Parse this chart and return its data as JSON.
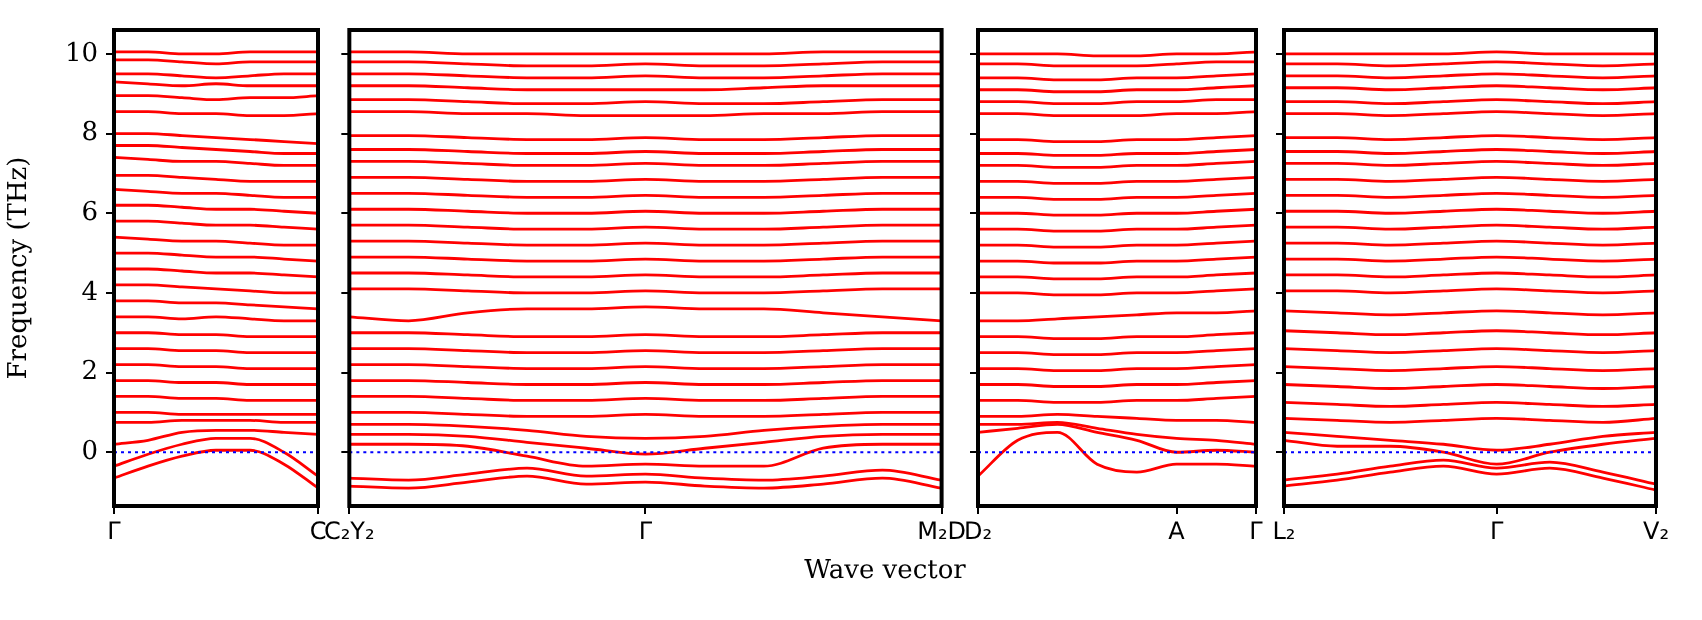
{
  "chart_data": [
    {
      "type": "line",
      "ylabel": "Frequency (THz)",
      "categories": [
        "Γ",
        null,
        null,
        null,
        null,
        null,
        "C"
      ],
      "ylim": [
        -1.35,
        10.6
      ],
      "yticks": [
        0,
        2,
        4,
        6,
        8,
        10
      ],
      "ref_lines": [
        {
          "axis": "y",
          "value": 0,
          "color": "#0000ff",
          "line_style": "dotted"
        }
      ],
      "series": [
        {
          "color": "#ff0000",
          "values": [
            10.05,
            10.05,
            10.0,
            10.0,
            10.05,
            10.05,
            10.05
          ]
        },
        {
          "color": "#ff0000",
          "values": [
            9.85,
            9.85,
            9.8,
            9.75,
            9.8,
            9.8,
            9.8
          ]
        },
        {
          "color": "#ff0000",
          "values": [
            9.5,
            9.5,
            9.45,
            9.4,
            9.45,
            9.5,
            9.5
          ]
        },
        {
          "color": "#ff0000",
          "values": [
            9.3,
            9.25,
            9.2,
            9.25,
            9.2,
            9.2,
            9.2
          ]
        },
        {
          "color": "#ff0000",
          "values": [
            8.95,
            8.95,
            8.9,
            8.85,
            8.9,
            8.9,
            8.95
          ]
        },
        {
          "color": "#ff0000",
          "values": [
            8.55,
            8.55,
            8.5,
            8.5,
            8.45,
            8.45,
            8.5
          ]
        },
        {
          "color": "#ff0000",
          "values": [
            8.0,
            8.0,
            7.95,
            7.9,
            7.85,
            7.8,
            7.75
          ]
        },
        {
          "color": "#ff0000",
          "values": [
            7.7,
            7.7,
            7.65,
            7.6,
            7.55,
            7.5,
            7.5
          ]
        },
        {
          "color": "#ff0000",
          "values": [
            7.4,
            7.35,
            7.3,
            7.3,
            7.25,
            7.2,
            7.2
          ]
        },
        {
          "color": "#ff0000",
          "values": [
            6.95,
            6.95,
            6.9,
            6.85,
            6.8,
            6.8,
            6.8
          ]
        },
        {
          "color": "#ff0000",
          "values": [
            6.6,
            6.55,
            6.5,
            6.5,
            6.45,
            6.4,
            6.4
          ]
        },
        {
          "color": "#ff0000",
          "values": [
            6.2,
            6.2,
            6.15,
            6.1,
            6.1,
            6.05,
            6.0
          ]
        },
        {
          "color": "#ff0000",
          "values": [
            5.8,
            5.8,
            5.75,
            5.7,
            5.7,
            5.65,
            5.6
          ]
        },
        {
          "color": "#ff0000",
          "values": [
            5.4,
            5.35,
            5.3,
            5.3,
            5.25,
            5.2,
            5.2
          ]
        },
        {
          "color": "#ff0000",
          "values": [
            5.0,
            5.0,
            4.95,
            4.9,
            4.9,
            4.85,
            4.8
          ]
        },
        {
          "color": "#ff0000",
          "values": [
            4.6,
            4.6,
            4.55,
            4.5,
            4.5,
            4.45,
            4.4
          ]
        },
        {
          "color": "#ff0000",
          "values": [
            4.2,
            4.2,
            4.15,
            4.1,
            4.05,
            4.0,
            4.0
          ]
        },
        {
          "color": "#ff0000",
          "values": [
            3.8,
            3.8,
            3.75,
            3.75,
            3.7,
            3.65,
            3.6
          ]
        },
        {
          "color": "#ff0000",
          "values": [
            3.4,
            3.4,
            3.35,
            3.4,
            3.35,
            3.3,
            3.3
          ]
        },
        {
          "color": "#ff0000",
          "values": [
            3.0,
            3.0,
            2.95,
            2.95,
            2.9,
            2.9,
            2.9
          ]
        },
        {
          "color": "#ff0000",
          "values": [
            2.6,
            2.6,
            2.55,
            2.55,
            2.5,
            2.5,
            2.5
          ]
        },
        {
          "color": "#ff0000",
          "values": [
            2.2,
            2.2,
            2.15,
            2.15,
            2.1,
            2.1,
            2.1
          ]
        },
        {
          "color": "#ff0000",
          "values": [
            1.8,
            1.8,
            1.75,
            1.75,
            1.7,
            1.7,
            1.7
          ]
        },
        {
          "color": "#ff0000",
          "values": [
            1.4,
            1.4,
            1.35,
            1.35,
            1.3,
            1.3,
            1.3
          ]
        },
        {
          "color": "#ff0000",
          "values": [
            1.0,
            1.0,
            0.95,
            0.95,
            0.95,
            0.95,
            0.95
          ]
        },
        {
          "color": "#ff0000",
          "values": [
            0.75,
            0.75,
            0.8,
            0.8,
            0.8,
            0.75,
            0.75
          ]
        },
        {
          "color": "#ff0000",
          "values": [
            0.2,
            0.3,
            0.5,
            0.55,
            0.55,
            0.5,
            0.45
          ]
        },
        {
          "color": "#ff0000",
          "values": [
            -0.35,
            -0.05,
            0.2,
            0.35,
            0.35,
            0.0,
            -0.6
          ]
        },
        {
          "color": "#ff0000",
          "values": [
            -0.65,
            -0.35,
            -0.1,
            0.05,
            0.05,
            -0.3,
            -0.9
          ]
        }
      ]
    },
    {
      "type": "line",
      "categories": [
        "C₂Y₂",
        null,
        null,
        null,
        null,
        "Γ",
        null,
        null,
        null,
        null,
        "M₂D"
      ],
      "ylim": [
        -1.35,
        10.6
      ],
      "yticks": [
        0,
        2,
        4,
        6,
        8,
        10
      ],
      "tick_labels": "x",
      "xlabel": "Wave vector",
      "ref_lines": [
        {
          "axis": "y",
          "value": 0,
          "color": "#0000ff",
          "line_style": "dotted"
        }
      ],
      "series": [
        {
          "color": "#ff0000",
          "values": [
            10.05,
            10.05,
            10.0,
            10.0,
            10.0,
            10.0,
            10.0,
            10.0,
            10.05,
            10.05,
            10.05
          ]
        },
        {
          "color": "#ff0000",
          "values": [
            9.8,
            9.8,
            9.75,
            9.7,
            9.7,
            9.75,
            9.7,
            9.7,
            9.75,
            9.8,
            9.8
          ]
        },
        {
          "color": "#ff0000",
          "values": [
            9.5,
            9.5,
            9.45,
            9.4,
            9.4,
            9.45,
            9.4,
            9.4,
            9.45,
            9.5,
            9.5
          ]
        },
        {
          "color": "#ff0000",
          "values": [
            9.2,
            9.2,
            9.15,
            9.1,
            9.1,
            9.1,
            9.1,
            9.15,
            9.2,
            9.2,
            9.2
          ]
        },
        {
          "color": "#ff0000",
          "values": [
            8.85,
            8.85,
            8.8,
            8.75,
            8.75,
            8.8,
            8.75,
            8.75,
            8.8,
            8.85,
            8.85
          ]
        },
        {
          "color": "#ff0000",
          "values": [
            8.55,
            8.55,
            8.5,
            8.5,
            8.45,
            8.45,
            8.45,
            8.5,
            8.5,
            8.55,
            8.55
          ]
        },
        {
          "color": "#ff0000",
          "values": [
            7.95,
            7.95,
            7.9,
            7.85,
            7.85,
            7.9,
            7.85,
            7.85,
            7.9,
            7.95,
            7.95
          ]
        },
        {
          "color": "#ff0000",
          "values": [
            7.6,
            7.6,
            7.55,
            7.5,
            7.5,
            7.55,
            7.5,
            7.5,
            7.55,
            7.6,
            7.6
          ]
        },
        {
          "color": "#ff0000",
          "values": [
            7.3,
            7.3,
            7.25,
            7.2,
            7.2,
            7.25,
            7.2,
            7.2,
            7.25,
            7.3,
            7.3
          ]
        },
        {
          "color": "#ff0000",
          "values": [
            6.9,
            6.9,
            6.85,
            6.8,
            6.8,
            6.85,
            6.8,
            6.8,
            6.85,
            6.9,
            6.9
          ]
        },
        {
          "color": "#ff0000",
          "values": [
            6.5,
            6.5,
            6.45,
            6.4,
            6.4,
            6.45,
            6.4,
            6.4,
            6.45,
            6.5,
            6.5
          ]
        },
        {
          "color": "#ff0000",
          "values": [
            6.1,
            6.1,
            6.05,
            6.0,
            6.0,
            6.05,
            6.0,
            6.0,
            6.05,
            6.1,
            6.1
          ]
        },
        {
          "color": "#ff0000",
          "values": [
            5.7,
            5.7,
            5.65,
            5.6,
            5.6,
            5.65,
            5.6,
            5.6,
            5.65,
            5.7,
            5.7
          ]
        },
        {
          "color": "#ff0000",
          "values": [
            5.3,
            5.3,
            5.25,
            5.2,
            5.2,
            5.25,
            5.2,
            5.2,
            5.25,
            5.3,
            5.3
          ]
        },
        {
          "color": "#ff0000",
          "values": [
            4.9,
            4.9,
            4.85,
            4.8,
            4.8,
            4.85,
            4.8,
            4.8,
            4.85,
            4.9,
            4.9
          ]
        },
        {
          "color": "#ff0000",
          "values": [
            4.5,
            4.5,
            4.45,
            4.4,
            4.4,
            4.45,
            4.4,
            4.4,
            4.45,
            4.5,
            4.5
          ]
        },
        {
          "color": "#ff0000",
          "values": [
            4.1,
            4.1,
            4.05,
            4.0,
            4.0,
            4.05,
            4.0,
            4.0,
            4.05,
            4.1,
            4.1
          ]
        },
        {
          "color": "#ff0000",
          "values": [
            3.4,
            3.3,
            3.5,
            3.6,
            3.6,
            3.65,
            3.6,
            3.6,
            3.5,
            3.4,
            3.3
          ]
        },
        {
          "color": "#ff0000",
          "values": [
            3.0,
            3.0,
            2.95,
            2.9,
            2.9,
            2.95,
            2.9,
            2.9,
            2.95,
            3.0,
            3.0
          ]
        },
        {
          "color": "#ff0000",
          "values": [
            2.6,
            2.6,
            2.55,
            2.5,
            2.5,
            2.55,
            2.5,
            2.5,
            2.55,
            2.6,
            2.6
          ]
        },
        {
          "color": "#ff0000",
          "values": [
            2.2,
            2.2,
            2.15,
            2.1,
            2.1,
            2.15,
            2.1,
            2.1,
            2.15,
            2.2,
            2.2
          ]
        },
        {
          "color": "#ff0000",
          "values": [
            1.8,
            1.8,
            1.75,
            1.7,
            1.7,
            1.75,
            1.7,
            1.7,
            1.75,
            1.8,
            1.8
          ]
        },
        {
          "color": "#ff0000",
          "values": [
            1.4,
            1.4,
            1.35,
            1.3,
            1.3,
            1.35,
            1.3,
            1.3,
            1.35,
            1.4,
            1.4
          ]
        },
        {
          "color": "#ff0000",
          "values": [
            1.0,
            1.0,
            0.95,
            0.9,
            0.9,
            0.95,
            0.9,
            0.9,
            0.95,
            1.0,
            1.0
          ]
        },
        {
          "color": "#ff0000",
          "values": [
            0.7,
            0.7,
            0.65,
            0.55,
            0.4,
            0.35,
            0.4,
            0.55,
            0.65,
            0.7,
            0.7
          ]
        },
        {
          "color": "#ff0000",
          "values": [
            0.45,
            0.45,
            0.4,
            0.25,
            0.1,
            -0.05,
            0.1,
            0.25,
            0.4,
            0.45,
            0.45
          ]
        },
        {
          "color": "#ff0000",
          "values": [
            0.2,
            0.2,
            0.15,
            -0.1,
            -0.35,
            -0.3,
            -0.35,
            -0.35,
            0.1,
            0.2,
            0.2
          ]
        },
        {
          "color": "#ff0000",
          "values": [
            -0.65,
            -0.7,
            -0.55,
            -0.4,
            -0.6,
            -0.55,
            -0.65,
            -0.7,
            -0.6,
            -0.45,
            -0.7
          ]
        },
        {
          "color": "#ff0000",
          "values": [
            -0.85,
            -0.9,
            -0.75,
            -0.6,
            -0.8,
            -0.75,
            -0.85,
            -0.9,
            -0.8,
            -0.65,
            -0.9
          ]
        }
      ]
    },
    {
      "type": "line",
      "categories": [
        "D₂",
        null,
        null,
        null,
        null,
        "A",
        null,
        "Γ"
      ],
      "ylim": [
        -1.35,
        10.6
      ],
      "yticks": [
        0,
        2,
        4,
        6,
        8,
        10
      ],
      "tick_labels": "x",
      "ref_lines": [
        {
          "axis": "y",
          "value": 0,
          "color": "#0000ff",
          "line_style": "dotted"
        }
      ],
      "series": [
        {
          "color": "#ff0000",
          "values": [
            10.0,
            10.0,
            10.0,
            9.95,
            9.95,
            10.0,
            10.0,
            10.05
          ]
        },
        {
          "color": "#ff0000",
          "values": [
            9.75,
            9.75,
            9.7,
            9.7,
            9.7,
            9.75,
            9.8,
            9.8
          ]
        },
        {
          "color": "#ff0000",
          "values": [
            9.4,
            9.4,
            9.35,
            9.35,
            9.4,
            9.4,
            9.45,
            9.5
          ]
        },
        {
          "color": "#ff0000",
          "values": [
            9.1,
            9.1,
            9.05,
            9.05,
            9.1,
            9.1,
            9.15,
            9.2
          ]
        },
        {
          "color": "#ff0000",
          "values": [
            8.8,
            8.8,
            8.75,
            8.75,
            8.8,
            8.8,
            8.85,
            8.85
          ]
        },
        {
          "color": "#ff0000",
          "values": [
            8.5,
            8.5,
            8.45,
            8.45,
            8.45,
            8.5,
            8.5,
            8.55
          ]
        },
        {
          "color": "#ff0000",
          "values": [
            7.85,
            7.85,
            7.8,
            7.8,
            7.85,
            7.85,
            7.9,
            7.95
          ]
        },
        {
          "color": "#ff0000",
          "values": [
            7.5,
            7.5,
            7.45,
            7.45,
            7.5,
            7.5,
            7.55,
            7.6
          ]
        },
        {
          "color": "#ff0000",
          "values": [
            7.2,
            7.2,
            7.15,
            7.15,
            7.2,
            7.2,
            7.25,
            7.3
          ]
        },
        {
          "color": "#ff0000",
          "values": [
            6.8,
            6.8,
            6.75,
            6.75,
            6.8,
            6.8,
            6.85,
            6.9
          ]
        },
        {
          "color": "#ff0000",
          "values": [
            6.4,
            6.4,
            6.35,
            6.35,
            6.4,
            6.4,
            6.45,
            6.5
          ]
        },
        {
          "color": "#ff0000",
          "values": [
            6.0,
            6.0,
            5.95,
            5.95,
            6.0,
            6.0,
            6.05,
            6.1
          ]
        },
        {
          "color": "#ff0000",
          "values": [
            5.6,
            5.6,
            5.55,
            5.55,
            5.6,
            5.6,
            5.65,
            5.7
          ]
        },
        {
          "color": "#ff0000",
          "values": [
            5.2,
            5.2,
            5.15,
            5.15,
            5.2,
            5.2,
            5.25,
            5.3
          ]
        },
        {
          "color": "#ff0000",
          "values": [
            4.8,
            4.8,
            4.75,
            4.75,
            4.8,
            4.8,
            4.85,
            4.9
          ]
        },
        {
          "color": "#ff0000",
          "values": [
            4.4,
            4.4,
            4.35,
            4.35,
            4.4,
            4.4,
            4.45,
            4.5
          ]
        },
        {
          "color": "#ff0000",
          "values": [
            4.0,
            4.0,
            3.95,
            3.95,
            4.0,
            4.0,
            4.05,
            4.1
          ]
        },
        {
          "color": "#ff0000",
          "values": [
            3.3,
            3.3,
            3.35,
            3.4,
            3.45,
            3.5,
            3.5,
            3.55
          ]
        },
        {
          "color": "#ff0000",
          "values": [
            2.9,
            2.9,
            2.85,
            2.85,
            2.9,
            2.9,
            2.95,
            3.0
          ]
        },
        {
          "color": "#ff0000",
          "values": [
            2.5,
            2.5,
            2.45,
            2.45,
            2.5,
            2.5,
            2.55,
            2.6
          ]
        },
        {
          "color": "#ff0000",
          "values": [
            2.1,
            2.1,
            2.05,
            2.05,
            2.1,
            2.1,
            2.15,
            2.2
          ]
        },
        {
          "color": "#ff0000",
          "values": [
            1.7,
            1.7,
            1.65,
            1.65,
            1.7,
            1.7,
            1.75,
            1.8
          ]
        },
        {
          "color": "#ff0000",
          "values": [
            1.3,
            1.3,
            1.25,
            1.25,
            1.3,
            1.3,
            1.35,
            1.4
          ]
        },
        {
          "color": "#ff0000",
          "values": [
            0.9,
            0.9,
            0.95,
            0.9,
            0.85,
            0.8,
            0.8,
            0.75
          ]
        },
        {
          "color": "#ff0000",
          "values": [
            0.7,
            0.7,
            0.75,
            0.6,
            0.45,
            0.35,
            0.3,
            0.2
          ]
        },
        {
          "color": "#ff0000",
          "values": [
            0.5,
            0.6,
            0.7,
            0.5,
            0.3,
            0.0,
            0.05,
            0.0
          ]
        },
        {
          "color": "#ff0000",
          "values": [
            -0.6,
            0.3,
            0.5,
            -0.3,
            -0.5,
            -0.3,
            -0.3,
            -0.35
          ]
        }
      ]
    },
    {
      "type": "line",
      "categories": [
        "L₂",
        null,
        null,
        null,
        "Γ",
        null,
        null,
        "V₂"
      ],
      "ylim": [
        -1.35,
        10.6
      ],
      "yticks": [
        0,
        2,
        4,
        6,
        8,
        10
      ],
      "tick_labels": "x",
      "ref_lines": [
        {
          "axis": "y",
          "value": 0,
          "color": "#0000ff",
          "line_style": "dotted"
        }
      ],
      "series": [
        {
          "color": "#ff0000",
          "values": [
            10.0,
            10.0,
            10.0,
            10.0,
            10.05,
            10.0,
            10.0,
            10.0
          ]
        },
        {
          "color": "#ff0000",
          "values": [
            9.75,
            9.75,
            9.7,
            9.75,
            9.8,
            9.75,
            9.7,
            9.75
          ]
        },
        {
          "color": "#ff0000",
          "values": [
            9.45,
            9.45,
            9.4,
            9.45,
            9.5,
            9.45,
            9.4,
            9.45
          ]
        },
        {
          "color": "#ff0000",
          "values": [
            9.15,
            9.15,
            9.1,
            9.15,
            9.2,
            9.15,
            9.1,
            9.15
          ]
        },
        {
          "color": "#ff0000",
          "values": [
            8.8,
            8.8,
            8.75,
            8.8,
            8.85,
            8.8,
            8.75,
            8.8
          ]
        },
        {
          "color": "#ff0000",
          "values": [
            8.5,
            8.5,
            8.45,
            8.5,
            8.55,
            8.5,
            8.45,
            8.5
          ]
        },
        {
          "color": "#ff0000",
          "values": [
            7.9,
            7.9,
            7.85,
            7.9,
            7.95,
            7.9,
            7.85,
            7.9
          ]
        },
        {
          "color": "#ff0000",
          "values": [
            7.55,
            7.55,
            7.5,
            7.55,
            7.6,
            7.55,
            7.5,
            7.55
          ]
        },
        {
          "color": "#ff0000",
          "values": [
            7.25,
            7.25,
            7.2,
            7.25,
            7.3,
            7.25,
            7.2,
            7.25
          ]
        },
        {
          "color": "#ff0000",
          "values": [
            6.85,
            6.85,
            6.8,
            6.85,
            6.9,
            6.85,
            6.8,
            6.85
          ]
        },
        {
          "color": "#ff0000",
          "values": [
            6.45,
            6.45,
            6.4,
            6.45,
            6.5,
            6.45,
            6.4,
            6.45
          ]
        },
        {
          "color": "#ff0000",
          "values": [
            6.05,
            6.05,
            6.0,
            6.05,
            6.1,
            6.05,
            6.0,
            6.05
          ]
        },
        {
          "color": "#ff0000",
          "values": [
            5.65,
            5.65,
            5.6,
            5.65,
            5.7,
            5.65,
            5.6,
            5.65
          ]
        },
        {
          "color": "#ff0000",
          "values": [
            5.25,
            5.25,
            5.2,
            5.25,
            5.3,
            5.25,
            5.2,
            5.25
          ]
        },
        {
          "color": "#ff0000",
          "values": [
            4.85,
            4.85,
            4.8,
            4.85,
            4.9,
            4.85,
            4.8,
            4.85
          ]
        },
        {
          "color": "#ff0000",
          "values": [
            4.45,
            4.45,
            4.4,
            4.45,
            4.5,
            4.45,
            4.4,
            4.45
          ]
        },
        {
          "color": "#ff0000",
          "values": [
            4.05,
            4.05,
            4.0,
            4.05,
            4.1,
            4.05,
            4.0,
            4.05
          ]
        },
        {
          "color": "#ff0000",
          "values": [
            3.55,
            3.5,
            3.45,
            3.5,
            3.55,
            3.5,
            3.45,
            3.5
          ]
        },
        {
          "color": "#ff0000",
          "values": [
            3.05,
            3.0,
            2.95,
            3.0,
            3.05,
            3.0,
            2.95,
            3.0
          ]
        },
        {
          "color": "#ff0000",
          "values": [
            2.6,
            2.55,
            2.5,
            2.55,
            2.6,
            2.55,
            2.5,
            2.55
          ]
        },
        {
          "color": "#ff0000",
          "values": [
            2.15,
            2.1,
            2.05,
            2.1,
            2.15,
            2.1,
            2.05,
            2.1
          ]
        },
        {
          "color": "#ff0000",
          "values": [
            1.7,
            1.65,
            1.6,
            1.65,
            1.7,
            1.65,
            1.6,
            1.65
          ]
        },
        {
          "color": "#ff0000",
          "values": [
            1.25,
            1.2,
            1.15,
            1.2,
            1.25,
            1.2,
            1.15,
            1.2
          ]
        },
        {
          "color": "#ff0000",
          "values": [
            0.85,
            0.8,
            0.75,
            0.8,
            0.85,
            0.8,
            0.75,
            0.85
          ]
        },
        {
          "color": "#ff0000",
          "values": [
            0.5,
            0.4,
            0.3,
            0.2,
            0.05,
            0.2,
            0.4,
            0.5
          ]
        },
        {
          "color": "#ff0000",
          "values": [
            0.3,
            0.15,
            0.15,
            0.0,
            -0.3,
            0.0,
            0.2,
            0.35
          ]
        },
        {
          "color": "#ff0000",
          "values": [
            -0.7,
            -0.55,
            -0.35,
            -0.2,
            -0.4,
            -0.25,
            -0.5,
            -0.8
          ]
        },
        {
          "color": "#ff0000",
          "values": [
            -0.85,
            -0.7,
            -0.5,
            -0.35,
            -0.55,
            -0.4,
            -0.65,
            -0.95
          ]
        }
      ]
    }
  ]
}
